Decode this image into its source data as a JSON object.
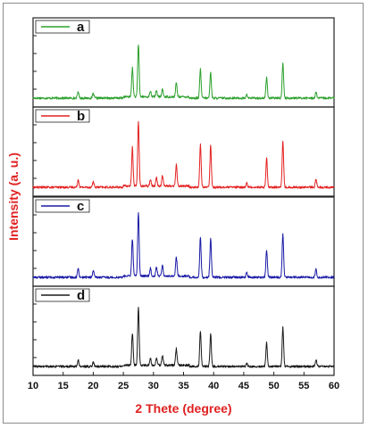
{
  "chart_data": {
    "type": "line",
    "xlabel": "2 Thete (degree)",
    "ylabel": "Intensity (a. u.)",
    "xlim": [
      10,
      60
    ],
    "xticks": [
      "10",
      "15",
      "20",
      "25",
      "30",
      "35",
      "40",
      "45",
      "50",
      "55",
      "60"
    ],
    "grid": false,
    "stacked_panels": true,
    "legend_placement": "top-left of each panel",
    "peaks_2theta": [
      17.5,
      20.0,
      26.5,
      27.5,
      29.5,
      30.5,
      31.5,
      33.8,
      37.8,
      39.5,
      45.5,
      48.8,
      51.5,
      57.0
    ],
    "series": [
      {
        "name": "a",
        "color": "#2ca02c",
        "intensities": [
          0.1,
          0.07,
          0.45,
          0.82,
          0.09,
          0.1,
          0.12,
          0.22,
          0.45,
          0.4,
          0.05,
          0.32,
          0.55,
          0.09
        ]
      },
      {
        "name": "b",
        "color": "#e32222",
        "intensities": [
          0.12,
          0.09,
          0.6,
          1.0,
          0.11,
          0.13,
          0.17,
          0.33,
          0.67,
          0.65,
          0.07,
          0.46,
          0.72,
          0.12
        ]
      },
      {
        "name": "c",
        "color": "#1a1aa6",
        "intensities": [
          0.14,
          0.1,
          0.58,
          1.0,
          0.12,
          0.14,
          0.17,
          0.3,
          0.62,
          0.6,
          0.07,
          0.43,
          0.68,
          0.12
        ]
      },
      {
        "name": "d",
        "color": "#1a1a1a",
        "intensities": [
          0.1,
          0.07,
          0.5,
          0.9,
          0.1,
          0.12,
          0.15,
          0.26,
          0.55,
          0.5,
          0.06,
          0.37,
          0.62,
          0.1
        ]
      }
    ]
  },
  "axis_title_color": "#e02020"
}
